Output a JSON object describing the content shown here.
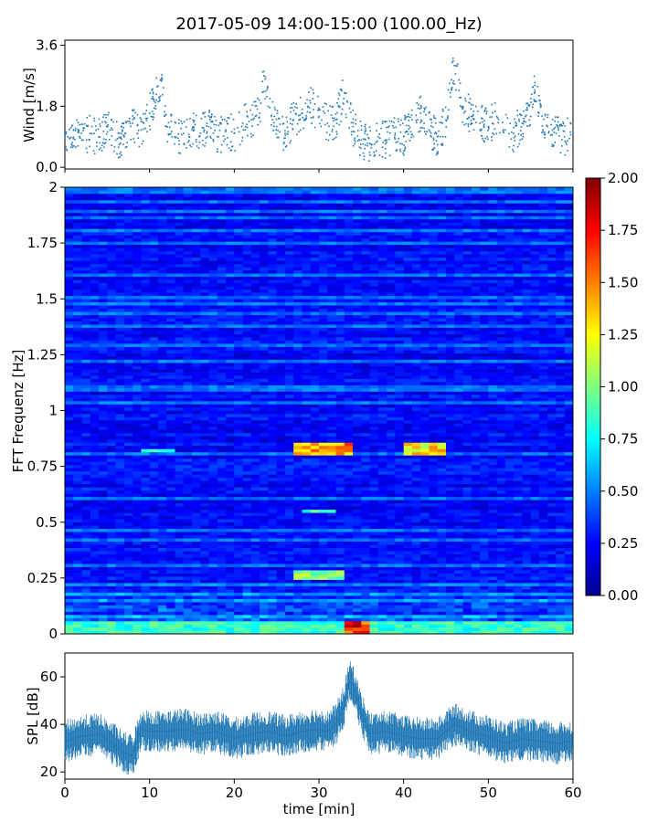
{
  "title": "2017-05-09 14:00-15:00 (100.00_Hz)",
  "colors": {
    "wind": "#1f77b4",
    "spl": "#1f77b4"
  },
  "chart_data": [
    {
      "id": "wind",
      "type": "scatter",
      "ylabel": "Wind [m/s]",
      "xlim": [
        0,
        60
      ],
      "ylim": [
        -0.05,
        3.75
      ],
      "yticks": [
        0.0,
        1.8,
        3.6
      ],
      "ytick_labels": [
        "0.0",
        "1.8",
        "3.6"
      ],
      "grid": false,
      "series": [
        {
          "x": [
            0,
            1,
            2,
            3,
            4,
            5,
            6,
            7,
            8,
            9,
            10,
            10.5,
            11,
            11.5,
            12,
            13,
            14,
            15,
            16,
            17,
            18,
            19,
            20,
            21,
            22,
            23,
            23.5,
            24,
            25,
            26,
            27,
            28,
            29,
            30,
            31,
            32,
            33,
            34,
            35,
            36,
            37,
            38,
            39,
            40,
            41,
            42,
            43,
            44,
            45,
            45.5,
            46,
            47,
            48,
            49,
            50,
            51,
            52,
            53,
            54,
            55,
            55.5,
            56,
            57,
            58,
            59,
            60
          ],
          "y": [
            1.0,
            1.1,
            0.8,
            1.0,
            0.9,
            1.2,
            0.8,
            0.9,
            1.3,
            1.1,
            1.6,
            2.0,
            2.4,
            2.6,
            1.2,
            0.9,
            1.0,
            1.1,
            1.0,
            1.2,
            0.9,
            1.1,
            1.0,
            1.3,
            1.4,
            1.6,
            2.7,
            1.8,
            1.2,
            1.0,
            1.4,
            1.6,
            1.9,
            1.5,
            1.3,
            1.4,
            2.2,
            1.2,
            0.8,
            0.7,
            0.9,
            0.8,
            1.0,
            0.9,
            1.4,
            1.6,
            1.1,
            0.9,
            1.4,
            2.2,
            3.0,
            1.8,
            1.5,
            1.3,
            1.2,
            1.5,
            1.1,
            1.0,
            1.3,
            1.5,
            2.5,
            1.6,
            1.2,
            1.0,
            0.9,
            1.0
          ]
        }
      ]
    },
    {
      "id": "spectrogram",
      "type": "heatmap",
      "ylabel": "FFT Frequenz [Hz]",
      "xlim": [
        0,
        60
      ],
      "ylim": [
        0,
        2
      ],
      "yticks": [
        0,
        0.25,
        0.5,
        0.75,
        1,
        1.25,
        1.5,
        1.75,
        2
      ],
      "ytick_labels": [
        "0",
        "0.25",
        "0.5",
        "0.75",
        "1",
        "1.25",
        "1.5",
        "1.75",
        "2"
      ],
      "colorbar": {
        "range": [
          0.0,
          2.0
        ],
        "ticks": [
          0.0,
          0.25,
          0.5,
          0.75,
          1.0,
          1.25,
          1.5,
          1.75,
          2.0
        ],
        "tick_labels": [
          "0.00",
          "0.25",
          "0.50",
          "0.75",
          "1.00",
          "1.25",
          "1.50",
          "1.75",
          "2.00"
        ],
        "colormap": "jet"
      },
      "features": [
        {
          "time": [
            0,
            60
          ],
          "freq": [
            0,
            0.05
          ],
          "level": 1.0
        },
        {
          "time": [
            33,
            36
          ],
          "freq": [
            0,
            0.05
          ],
          "level": 2.0
        },
        {
          "time": [
            27,
            34
          ],
          "freq": [
            0.8,
            0.85
          ],
          "level": 1.7
        },
        {
          "time": [
            40,
            45
          ],
          "freq": [
            0.8,
            0.85
          ],
          "level": 1.5
        },
        {
          "time": [
            9,
            13
          ],
          "freq": [
            0.81,
            0.83
          ],
          "level": 0.9
        },
        {
          "time": [
            27,
            33
          ],
          "freq": [
            0.25,
            0.28
          ],
          "level": 1.2
        },
        {
          "time": [
            28,
            32
          ],
          "freq": [
            0.54,
            0.56
          ],
          "level": 1.0
        }
      ]
    },
    {
      "id": "spl",
      "type": "line",
      "ylabel": "SPL [dB]",
      "xlabel": "time [min]",
      "xlim": [
        0,
        60
      ],
      "ylim": [
        17,
        70
      ],
      "xticks": [
        0,
        10,
        20,
        30,
        40,
        50,
        60
      ],
      "xtick_labels": [
        "0",
        "10",
        "20",
        "30",
        "40",
        "50",
        "60"
      ],
      "yticks": [
        20,
        40,
        60
      ],
      "ytick_labels": [
        "20",
        "40",
        "60"
      ],
      "grid": false,
      "series": [
        {
          "x": [
            0,
            2,
            4,
            6,
            7,
            8,
            9,
            10,
            12,
            14,
            16,
            18,
            20,
            22,
            24,
            26,
            28,
            30,
            31,
            32,
            33,
            33.5,
            34,
            35,
            36,
            38,
            40,
            42,
            44,
            46,
            48,
            50,
            52,
            54,
            56,
            58,
            60
          ],
          "y": [
            33,
            35,
            36,
            31,
            28,
            27,
            38,
            37,
            37,
            38,
            36,
            37,
            34,
            36,
            37,
            35,
            37,
            38,
            37,
            40,
            48,
            58,
            57,
            45,
            36,
            37,
            35,
            34,
            34,
            40,
            37,
            35,
            32,
            34,
            33,
            32,
            33
          ]
        }
      ]
    }
  ]
}
